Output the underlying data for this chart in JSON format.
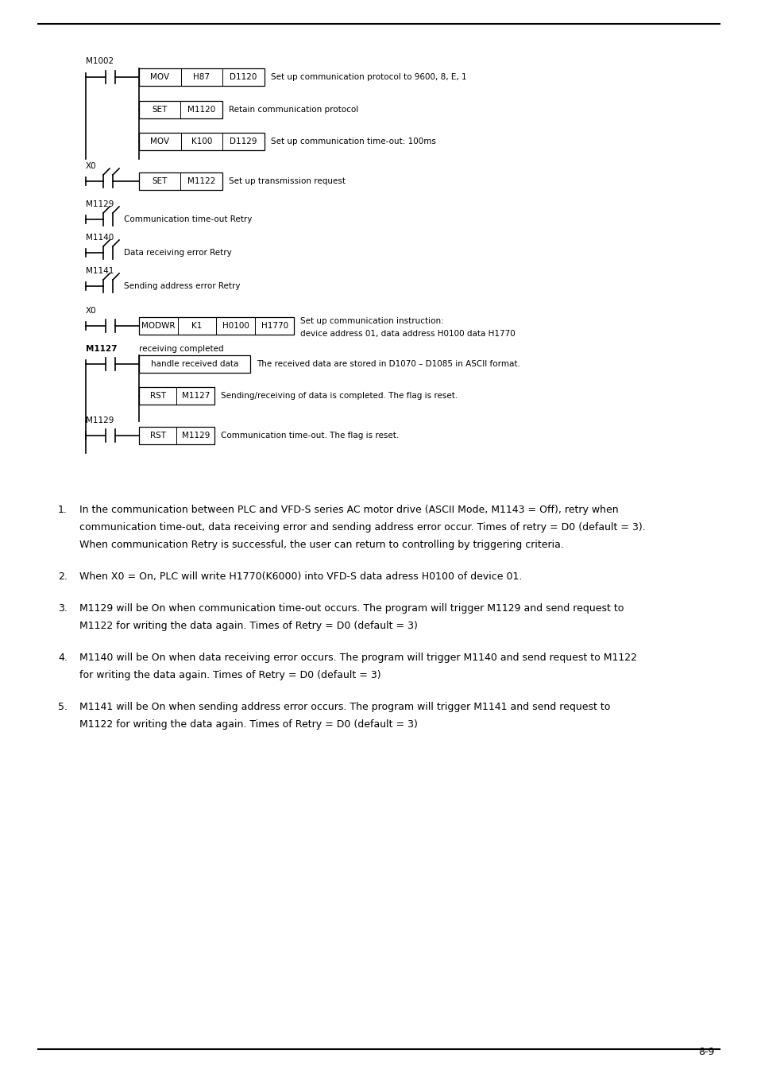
{
  "page_number": "8-9",
  "bg_color": "#ffffff",
  "font_family": "DejaVu Sans",
  "diagram_font_size": 7.5,
  "note_font_size": 9.0,
  "notes": [
    {
      "num": 1,
      "lines": [
        "In the communication between PLC and VFD-S series AC motor drive (ASCII Mode, M1143 = Off), retry when",
        "communication time-out, data receiving error and sending address error occur. Times of retry = D0 (default = 3).",
        "When communication Retry is successful, the user can return to controlling by triggering criteria."
      ]
    },
    {
      "num": 2,
      "lines": [
        "When X0 = On, PLC will write H1770(K6000) into VFD-S data adress H0100 of device 01."
      ]
    },
    {
      "num": 3,
      "lines": [
        "M1129 will be On when communication time-out occurs. The program will trigger M1129 and send request to",
        "M1122 for writing the data again. Times of Retry = D0 (default = 3)"
      ]
    },
    {
      "num": 4,
      "lines": [
        "M1140 will be On when data receiving error occurs. The program will trigger M1140 and send request to M1122",
        "for writing the data again. Times of Retry = D0 (default = 3)"
      ]
    },
    {
      "num": 5,
      "lines": [
        "M1141 will be On when sending address error occurs. The program will trigger M1141 and send request to",
        "M1122 for writing the data again. Times of Retry = D0 (default = 3)"
      ]
    }
  ]
}
